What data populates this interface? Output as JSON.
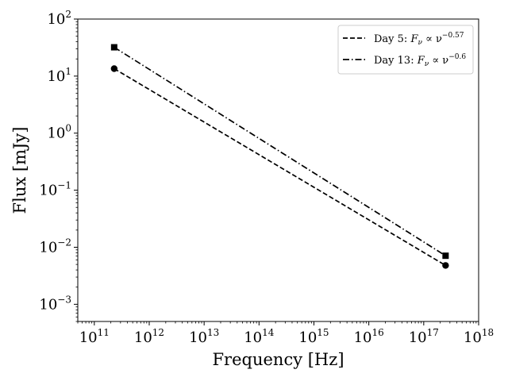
{
  "chart_data": {
    "type": "line",
    "xlabel": "Frequency [Hz]",
    "ylabel": "Flux [mJy]",
    "xscale": "log",
    "yscale": "log",
    "xlim": [
      50000000000.0,
      1e+18
    ],
    "ylim": [
      0.0005,
      100
    ],
    "x_ticks": [
      {
        "base": "10",
        "exp": "11",
        "value": 100000000000.0
      },
      {
        "base": "10",
        "exp": "12",
        "value": 1000000000000.0
      },
      {
        "base": "10",
        "exp": "13",
        "value": 10000000000000.0
      },
      {
        "base": "10",
        "exp": "14",
        "value": 100000000000000.0
      },
      {
        "base": "10",
        "exp": "15",
        "value": 1000000000000000.0
      },
      {
        "base": "10",
        "exp": "16",
        "value": 1e+16
      },
      {
        "base": "10",
        "exp": "17",
        "value": 1e+17
      },
      {
        "base": "10",
        "exp": "18",
        "value": 1e+18
      }
    ],
    "y_ticks": [
      {
        "base": "10",
        "exp": "−3",
        "value": 0.001
      },
      {
        "base": "10",
        "exp": "−2",
        "value": 0.01
      },
      {
        "base": "10",
        "exp": "−1",
        "value": 0.1
      },
      {
        "base": "10",
        "exp": "0",
        "value": 1
      },
      {
        "base": "10",
        "exp": "1",
        "value": 10
      },
      {
        "base": "10",
        "exp": "2",
        "value": 100
      }
    ],
    "grid": false,
    "legend_position": "top-right",
    "series": [
      {
        "label_prefix": "Day 5: ",
        "label_f": "F",
        "label_sub": "ν",
        "label_mid": " ∝ ν",
        "label_exp": "−0.57",
        "dash": "dashed",
        "marker": "circle",
        "color": "#000000",
        "x": [
          230000000000.0,
          2.5e+17
        ],
        "y": [
          13.5,
          0.0048
        ]
      },
      {
        "label_prefix": "Day 13: ",
        "label_f": "F",
        "label_sub": "ν",
        "label_mid": " ∝ ν",
        "label_exp": "−0.6",
        "dash": "dashdot",
        "marker": "square",
        "color": "#000000",
        "x": [
          230000000000.0,
          2.5e+17
        ],
        "y": [
          32,
          0.0071
        ]
      }
    ]
  }
}
